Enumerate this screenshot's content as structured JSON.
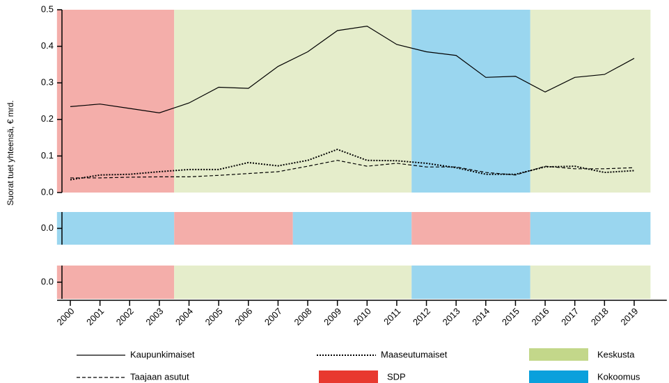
{
  "chart_data": [
    {
      "type": "line",
      "ylabel": "Suorat tuet yhteensä, € mrd.",
      "ylim": [
        0,
        0.5
      ],
      "yticks": [
        {
          "value": 0,
          "label": "0.0"
        },
        0.1,
        0.2,
        0.3,
        0.4,
        0.5
      ],
      "xlim": [
        1999.55,
        2020.1
      ],
      "x": [
        2000,
        2001,
        2002,
        2003,
        2004,
        2005,
        2006,
        2007,
        2008,
        2009,
        2010,
        2011,
        2012,
        2013,
        2014,
        2015,
        2016,
        2017,
        2018,
        2019
      ],
      "series": [
        {
          "name": "Kaupunkimaiset",
          "color": "#000000",
          "style": "solid",
          "values": [
            0.235,
            0.242,
            0.23,
            0.218,
            0.245,
            0.288,
            0.285,
            0.345,
            0.385,
            0.443,
            0.455,
            0.405,
            0.385,
            0.375,
            0.315,
            0.318,
            0.275,
            0.315,
            0.323,
            0.367
          ]
        },
        {
          "name": "Taajaan asutut",
          "color": "#000000",
          "style": "dashed",
          "values": [
            0.04,
            0.04,
            0.042,
            0.043,
            0.043,
            0.047,
            0.052,
            0.057,
            0.072,
            0.088,
            0.072,
            0.08,
            0.07,
            0.07,
            0.055,
            0.048,
            0.072,
            0.065,
            0.065,
            0.068
          ]
        },
        {
          "name": "Maaseutumaiset",
          "color": "#000000",
          "style": "dotted",
          "values": [
            0.035,
            0.048,
            0.05,
            0.057,
            0.063,
            0.063,
            0.082,
            0.073,
            0.088,
            0.118,
            0.088,
            0.087,
            0.08,
            0.068,
            0.05,
            0.05,
            0.07,
            0.072,
            0.055,
            0.06
          ]
        }
      ],
      "parties": [
        {
          "name": "SDP",
          "color": "#e8392f",
          "band_color": "#f4aeaa"
        },
        {
          "name": "Keskusta",
          "color": "#c3d78a",
          "band_color": "#e5edcb"
        },
        {
          "name": "Kokoomus",
          "color": "#0aa0dc",
          "band_color": "#9ad6ef"
        }
      ],
      "bands": [
        {
          "party": "SDP",
          "start": 1999.55,
          "end": 2003.5
        },
        {
          "party": "Keskusta",
          "start": 2003.5,
          "end": 2011.5
        },
        {
          "party": "Kokoomus",
          "start": 2011.5,
          "end": 2015.5
        },
        {
          "party": "Keskusta",
          "start": 2015.5,
          "end": 2019.55
        }
      ]
    },
    {
      "type": "bands",
      "ylim": [
        -0.5,
        0.5
      ],
      "yticks": [
        {
          "value": 0,
          "label": "0.0"
        }
      ],
      "xlim": [
        1999.55,
        2020.1
      ],
      "bands": [
        {
          "party": "Kokoomus",
          "start": 1999.55,
          "end": 2003.5
        },
        {
          "party": "SDP",
          "start": 2003.5,
          "end": 2007.5
        },
        {
          "party": "Kokoomus",
          "start": 2007.5,
          "end": 2011.5
        },
        {
          "party": "SDP",
          "start": 2011.5,
          "end": 2015.5
        },
        {
          "party": "Kokoomus",
          "start": 2015.5,
          "end": 2019.55
        }
      ]
    },
    {
      "type": "bands",
      "ylim": [
        -0.5,
        0.5
      ],
      "yticks": [
        {
          "value": 0,
          "label": "0.0"
        }
      ],
      "xlim": [
        1999.55,
        2020.1
      ],
      "xticks": [
        2000,
        2001,
        2002,
        2003,
        2004,
        2005,
        2006,
        2007,
        2008,
        2009,
        2010,
        2011,
        2012,
        2013,
        2014,
        2015,
        2016,
        2017,
        2018,
        2019
      ],
      "bands": [
        {
          "party": "SDP",
          "start": 1999.55,
          "end": 2003.5
        },
        {
          "party": "Keskusta",
          "start": 2003.5,
          "end": 2011.5
        },
        {
          "party": "Kokoomus",
          "start": 2011.5,
          "end": 2015.5
        },
        {
          "party": "Keskusta",
          "start": 2015.5,
          "end": 2019.55
        }
      ]
    }
  ]
}
